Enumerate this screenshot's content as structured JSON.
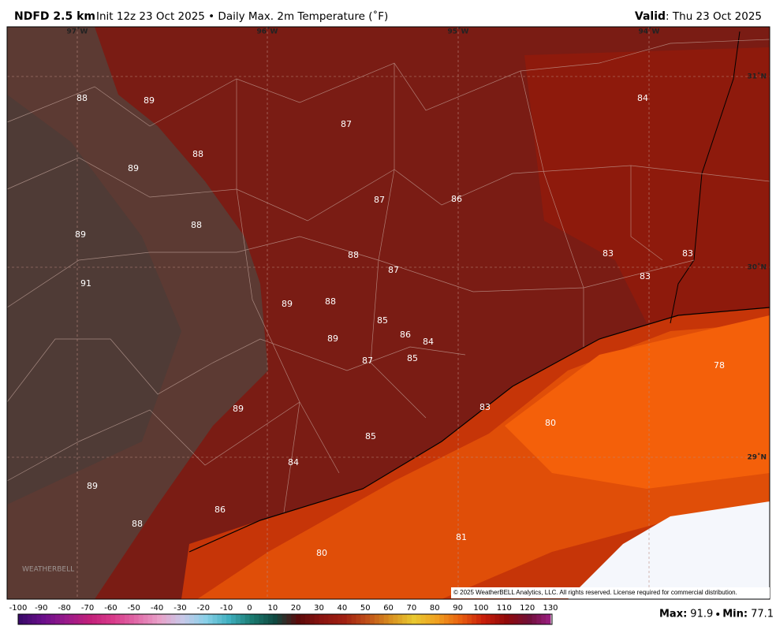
{
  "header": {
    "model": "NDFD 2.5 km",
    "description": "Init 12z 23 Oct 2025 • Daily Max. 2m Temperature (˚F)",
    "valid_label": "Valid",
    "valid_date": ": Thu 23 Oct 2025"
  },
  "map": {
    "longitude_labels": [
      "97˚W",
      "96˚W",
      "95˚W",
      "94˚W"
    ],
    "latitude_labels": [
      "31˚N",
      "30˚N",
      "29˚N"
    ],
    "temperature_labels": [
      88,
      89,
      87,
      84,
      88,
      89,
      87,
      86,
      88,
      89,
      83,
      83,
      88,
      87,
      83,
      91,
      89,
      88,
      85,
      86,
      84,
      89,
      87,
      85,
      78,
      83,
      80,
      89,
      85,
      84,
      89,
      86,
      88,
      81,
      80
    ],
    "logo": "WEATHERBELL",
    "copyright": "© 2025 WeatherBELL Analytics, LLC. All rights reserved. License required for commercial distribution."
  },
  "colorbar": {
    "ticks": [
      -100,
      -90,
      -80,
      -70,
      -60,
      -50,
      -40,
      -30,
      -20,
      -10,
      0,
      10,
      20,
      30,
      40,
      50,
      60,
      70,
      80,
      90,
      100,
      110,
      120,
      130
    ]
  },
  "stats": {
    "max_label": "Max",
    "max": 91.9,
    "min_label": "Min",
    "min": 77.1
  }
}
